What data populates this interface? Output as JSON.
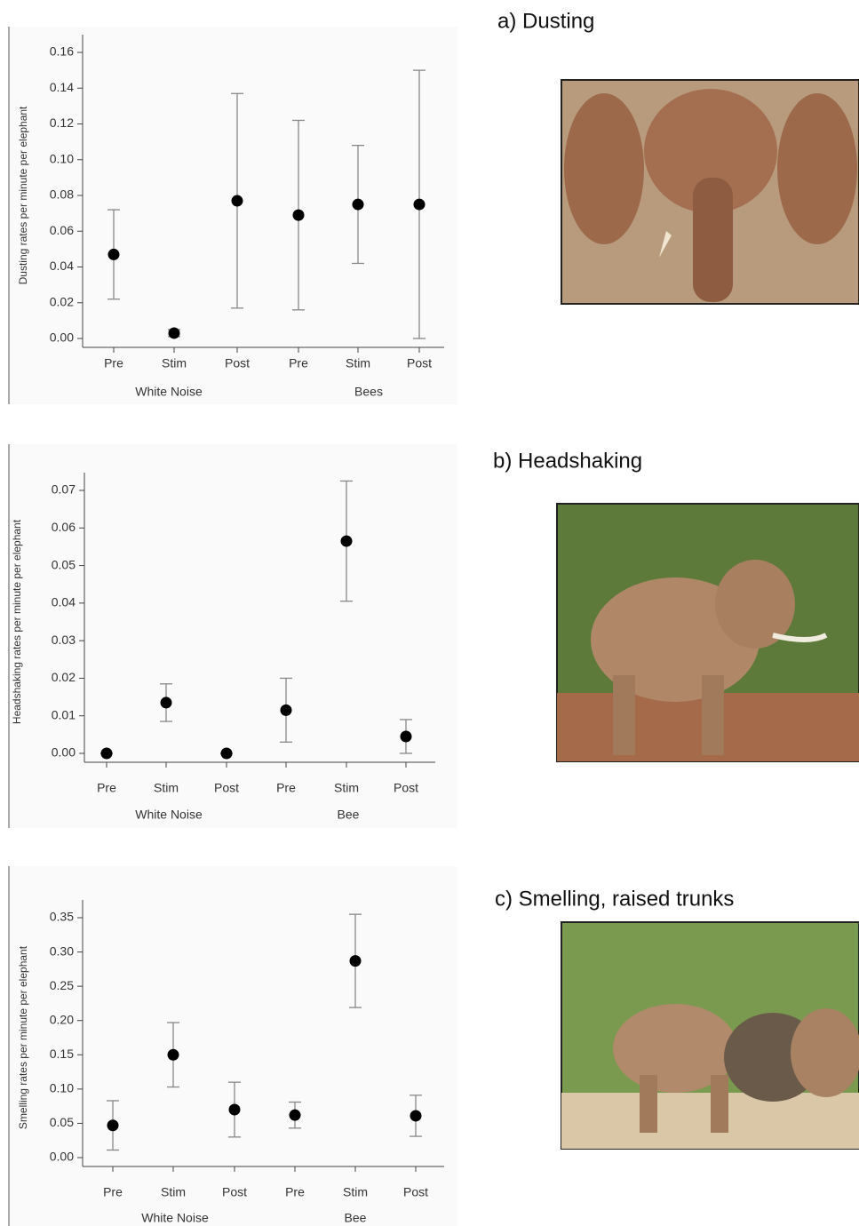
{
  "chart_data": [
    {
      "type": "scatter",
      "title": "a) Dusting",
      "y_label": "Dusting rates per minute per elephant",
      "categories": [
        "Pre",
        "Stim",
        "Post",
        "Pre",
        "Stim",
        "Post"
      ],
      "group_labels": [
        "White Noise",
        "Bees"
      ],
      "values": [
        0.047,
        0.003,
        0.077,
        0.069,
        0.075,
        0.075
      ],
      "errors": [
        0.025,
        0.002,
        0.06,
        0.053,
        0.033,
        0.075
      ],
      "color": "#000000",
      "ylim": [
        0,
        0.16
      ],
      "yticks": [
        {
          "value": 0,
          "label": "0.00"
        },
        {
          "value": 0.02,
          "label": "0.02"
        },
        {
          "value": 0.04,
          "label": "0.04"
        },
        {
          "value": 0.06,
          "label": "0.06"
        },
        {
          "value": 0.08,
          "label": "0.08"
        },
        {
          "value": 0.1,
          "label": "0.10"
        },
        {
          "value": 0.12,
          "label": "0.12"
        },
        {
          "value": 0.14,
          "label": "0.14"
        },
        {
          "value": 0.16,
          "label": "0.16"
        }
      ]
    },
    {
      "type": "scatter",
      "title": "b) Headshaking",
      "y_label": "Headshaking rates per minute per elephant",
      "categories": [
        "Pre",
        "Stim",
        "Post",
        "Pre",
        "Stim",
        "Post"
      ],
      "group_labels": [
        "White Noise",
        "Bee"
      ],
      "values": [
        0,
        0.0135,
        0,
        0.0115,
        0.0565,
        0.0045
      ],
      "errors": [
        0,
        0.005,
        0,
        0.0085,
        0.016,
        0.0045
      ],
      "color": "#000000",
      "ylim": [
        0,
        0.07
      ],
      "yticks": [
        {
          "value": 0,
          "label": "0.00"
        },
        {
          "value": 0.01,
          "label": "0.01"
        },
        {
          "value": 0.02,
          "label": "0.02"
        },
        {
          "value": 0.03,
          "label": "0.03"
        },
        {
          "value": 0.04,
          "label": "0.04"
        },
        {
          "value": 0.05,
          "label": "0.05"
        },
        {
          "value": 0.06,
          "label": "0.06"
        },
        {
          "value": 0.07,
          "label": "0.07"
        }
      ]
    },
    {
      "type": "scatter",
      "title": "c) Smelling, raised trunks",
      "y_label": "Smelling rates per minute per elephant",
      "categories": [
        "Pre",
        "Stim",
        "Post",
        "Pre",
        "Stim",
        "Post"
      ],
      "group_labels": [
        "White Noise",
        "Bee"
      ],
      "values": [
        0.047,
        0.15,
        0.07,
        0.062,
        0.287,
        0.061
      ],
      "errors": [
        0.036,
        0.047,
        0.04,
        0.019,
        0.068,
        0.03
      ],
      "color": "#000000",
      "ylim": [
        0,
        0.35
      ],
      "yticks": [
        {
          "value": 0,
          "label": "0.00"
        },
        {
          "value": 0.05,
          "label": "0.05"
        },
        {
          "value": 0.1,
          "label": "0.10"
        },
        {
          "value": 0.15,
          "label": "0.15"
        },
        {
          "value": 0.2,
          "label": "0.20"
        },
        {
          "value": 0.25,
          "label": "0.25"
        },
        {
          "value": 0.3,
          "label": "0.30"
        },
        {
          "value": 0.35,
          "label": "0.35"
        }
      ]
    }
  ]
}
